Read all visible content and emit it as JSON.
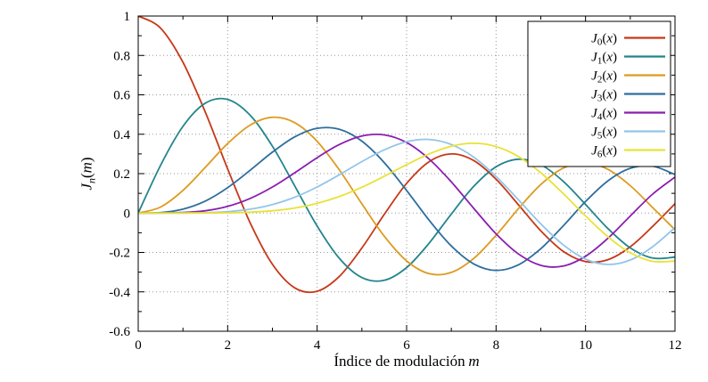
{
  "figure": {
    "background": "#ffffff",
    "border_color": "#000000",
    "grid_color": "#999999"
  },
  "chart_data": {
    "type": "line",
    "title": "",
    "xlabel": {
      "text": "Índice de modulación",
      "var": "m"
    },
    "ylabel": {
      "base": "J",
      "sub": "n",
      "open": "(",
      "var": "m",
      "close": ")"
    },
    "xlim": [
      0,
      12
    ],
    "ylim": [
      -0.6,
      1
    ],
    "grid": true,
    "legend_position": "top-right",
    "xticks": {
      "values": [
        0,
        2,
        4,
        6,
        8,
        10,
        12
      ],
      "labels": [
        "0",
        "2",
        "4",
        "6",
        "8",
        "10",
        "12"
      ]
    },
    "yticks": {
      "values": [
        -0.6,
        -0.4,
        -0.2,
        0,
        0.2,
        0.4,
        0.6,
        0.8,
        1
      ],
      "labels": [
        "-0.6",
        "-0.4",
        "-0.2",
        "0",
        "0.2",
        "0.4",
        "0.6",
        "0.8",
        "1"
      ]
    },
    "minor_xticks": [
      1,
      3,
      5,
      7,
      9,
      11
    ],
    "minor_yticks": [
      -0.5,
      -0.3,
      -0.1,
      0.1,
      0.3,
      0.5,
      0.7,
      0.9
    ],
    "x": [
      0,
      0.5,
      1,
      1.5,
      2,
      2.5,
      3,
      3.5,
      4,
      4.5,
      5,
      5.5,
      6,
      6.5,
      7,
      7.5,
      8,
      8.5,
      9,
      9.5,
      10,
      10.5,
      11,
      11.5,
      12
    ],
    "series": [
      {
        "base": "J",
        "sub": "0",
        "open": "(",
        "var": "x",
        "close": ")",
        "color": "#c63818",
        "values": [
          1.0,
          0.9385,
          0.7652,
          0.5118,
          0.2239,
          -0.0484,
          -0.2601,
          -0.3801,
          -0.3971,
          -0.3205,
          -0.1776,
          -0.0068,
          0.1506,
          0.2601,
          0.3001,
          0.2663,
          0.1717,
          0.0419,
          -0.0903,
          -0.1939,
          -0.2459,
          -0.2366,
          -0.1712,
          -0.0677,
          0.0477
        ]
      },
      {
        "base": "J",
        "sub": "1",
        "open": "(",
        "var": "x",
        "close": ")",
        "color": "#23858c",
        "values": [
          0,
          0.2423,
          0.4401,
          0.5579,
          0.5767,
          0.4971,
          0.3391,
          0.1374,
          -0.066,
          -0.2311,
          -0.3276,
          -0.3414,
          -0.2767,
          -0.1538,
          -0.0047,
          0.1352,
          0.2346,
          0.2731,
          0.2453,
          0.1613,
          0.0435,
          -0.0789,
          -0.1768,
          -0.2284,
          -0.2234
        ]
      },
      {
        "base": "J",
        "sub": "2",
        "open": "(",
        "var": "x",
        "close": ")",
        "color": "#dd9b1f",
        "values": [
          0,
          0.0306,
          0.1149,
          0.2321,
          0.3528,
          0.4461,
          0.4861,
          0.4586,
          0.3641,
          0.2178,
          0.0466,
          -0.1173,
          -0.2429,
          -0.3074,
          -0.3014,
          -0.2303,
          -0.113,
          0.0223,
          0.1448,
          0.2279,
          0.2546,
          0.2216,
          0.139,
          0.028,
          -0.0849
        ]
      },
      {
        "base": "J",
        "sub": "3",
        "open": "(",
        "var": "x",
        "close": ")",
        "color": "#2e6e9e",
        "values": [
          0,
          0.002,
          0.0196,
          0.061,
          0.1289,
          0.2166,
          0.3091,
          0.3868,
          0.4302,
          0.4247,
          0.3648,
          0.2561,
          0.1148,
          -0.0353,
          -0.1676,
          -0.2581,
          -0.2911,
          -0.2626,
          -0.1809,
          -0.0653,
          0.0584,
          0.1633,
          0.2273,
          0.2381,
          0.1951
        ]
      },
      {
        "base": "J",
        "sub": "4",
        "open": "(",
        "var": "x",
        "close": ")",
        "color": "#8a1fae",
        "values": [
          0,
          0.0002,
          0.0025,
          0.0117,
          0.034,
          0.0738,
          0.132,
          0.2044,
          0.2811,
          0.3484,
          0.3912,
          0.3967,
          0.3576,
          0.2748,
          0.1578,
          0.0238,
          -0.1054,
          -0.2077,
          -0.2655,
          -0.2691,
          -0.2196,
          -0.1283,
          -0.015,
          0.0962,
          0.1825
        ]
      },
      {
        "base": "J",
        "sub": "5",
        "open": "(",
        "var": "x",
        "close": ")",
        "color": "#93c5e9",
        "values": [
          0,
          0,
          0.0002,
          0.0018,
          0.007,
          0.0195,
          0.043,
          0.0804,
          0.1321,
          0.1947,
          0.2611,
          0.3209,
          0.3621,
          0.3735,
          0.3479,
          0.2835,
          0.1858,
          0.0671,
          -0.055,
          -0.1613,
          -0.2341,
          -0.2611,
          -0.2383,
          -0.1712,
          -0.0735
        ]
      },
      {
        "base": "J",
        "sub": "6",
        "open": "(",
        "var": "x",
        "close": ")",
        "color": "#e8e237",
        "values": [
          0,
          0,
          0,
          0.0002,
          0.0012,
          0.0042,
          0.0114,
          0.0254,
          0.0491,
          0.0843,
          0.131,
          0.1868,
          0.2458,
          0.2998,
          0.3392,
          0.3542,
          0.3376,
          0.2866,
          0.2043,
          0.0993,
          -0.0145,
          -0.1204,
          -0.2016,
          -0.2451,
          -0.2437
        ]
      }
    ]
  }
}
